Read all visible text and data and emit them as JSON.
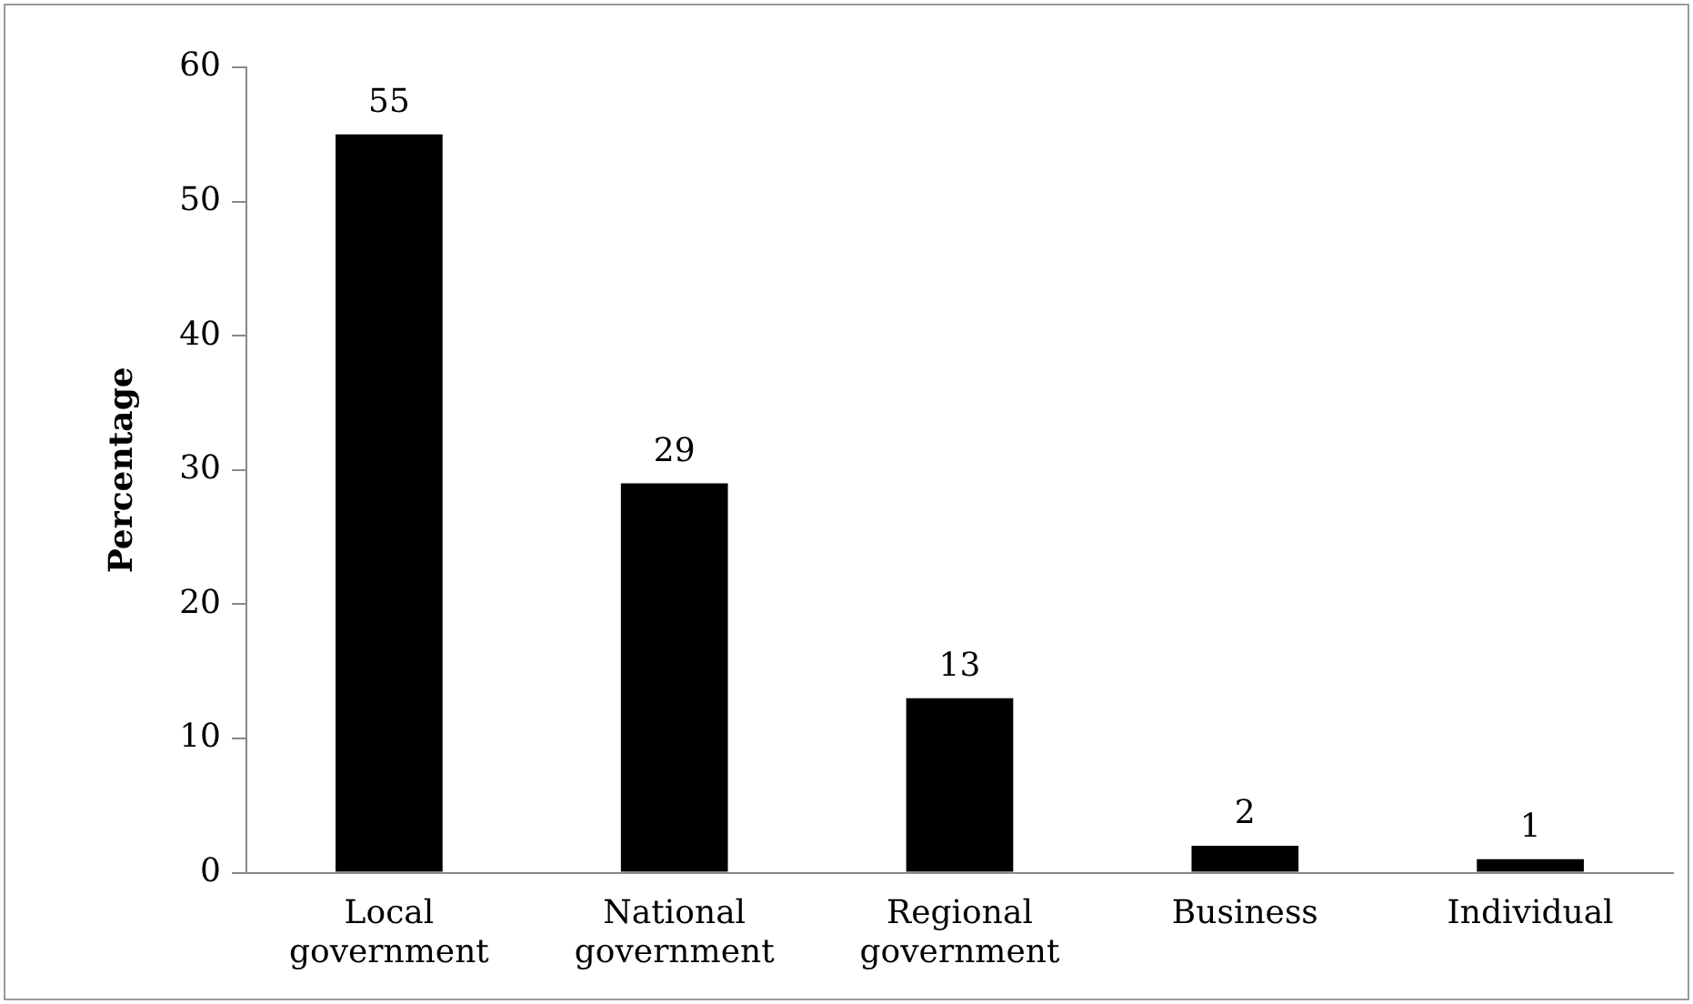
{
  "chart_data": {
    "type": "bar",
    "ylabel": "Percentage",
    "categories": [
      "Local government",
      "National government",
      "Regional government",
      "Business",
      "Individual"
    ],
    "values": [
      55,
      29,
      13,
      2,
      1
    ],
    "color": "#000000",
    "ylim": [
      0,
      60
    ],
    "yticks": [
      0,
      10,
      20,
      30,
      40,
      50,
      60
    ],
    "grid": false,
    "legend": false,
    "data_labels": true
  }
}
